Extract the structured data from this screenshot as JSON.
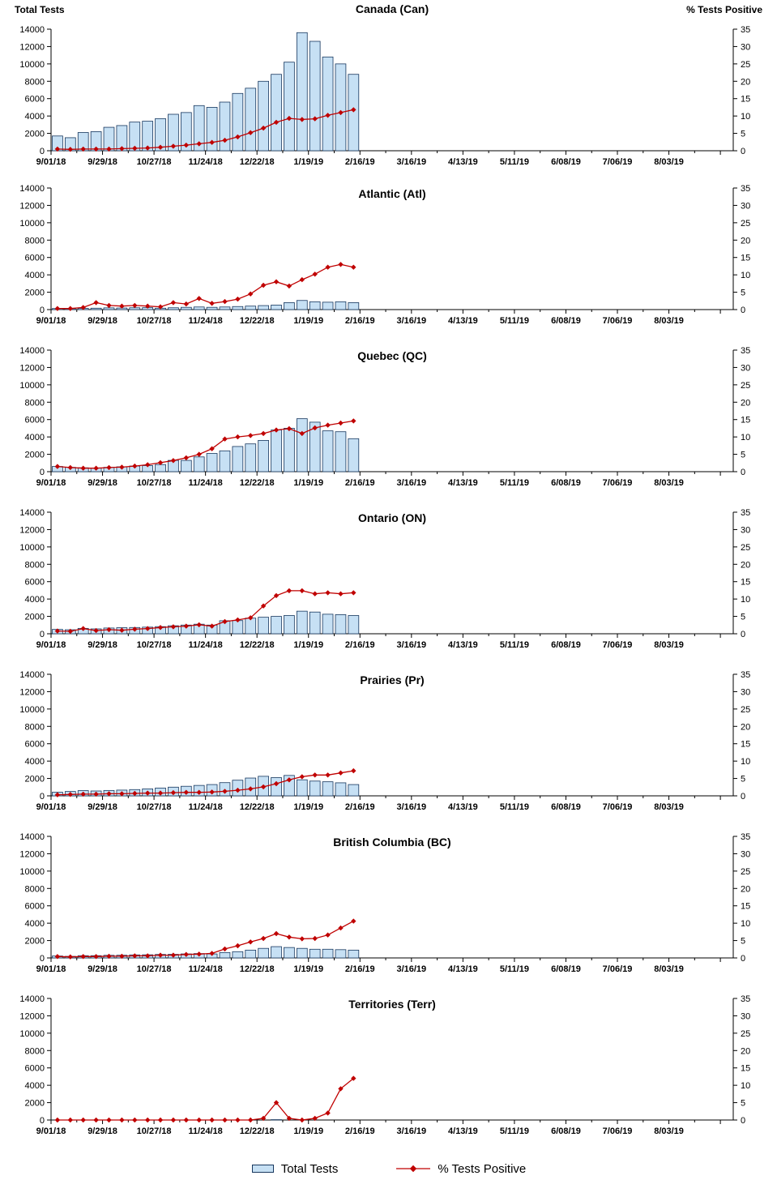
{
  "chart_data": {
    "type": "bar+line small-multiples",
    "x_tick_labels": [
      "9/01/18",
      "9/29/18",
      "10/27/18",
      "11/24/18",
      "12/22/18",
      "1/19/19",
      "2/16/19",
      "3/16/19",
      "4/13/19",
      "5/11/19",
      "6/08/19",
      "7/06/19",
      "8/03/19"
    ],
    "weeks": [
      "9/01/18",
      "9/08/18",
      "9/15/18",
      "9/22/18",
      "9/29/18",
      "10/06/18",
      "10/13/18",
      "10/20/18",
      "10/27/18",
      "11/03/18",
      "11/10/18",
      "11/17/18",
      "11/24/18",
      "12/01/18",
      "12/08/18",
      "12/15/18",
      "12/22/18",
      "12/29/18",
      "1/05/19",
      "1/12/19",
      "1/19/19",
      "1/26/19",
      "2/02/19",
      "2/09/19"
    ],
    "total_weeks_axis": 53,
    "left_axis": {
      "title": "Total Tests",
      "range": [
        0,
        14000
      ],
      "ticks": [
        0,
        2000,
        4000,
        6000,
        8000,
        10000,
        12000,
        14000
      ]
    },
    "right_axis": {
      "title": "% Tests  Positive",
      "range": [
        0,
        35
      ],
      "ticks": [
        0,
        5,
        10,
        15,
        20,
        25,
        30,
        35
      ]
    },
    "colors": {
      "bar_fill": "#C6E0F4",
      "bar_border": "#17375E",
      "line": "#C00000",
      "axis": "#000000"
    },
    "legend": [
      {
        "label": "Total Tests",
        "type": "bar"
      },
      {
        "label": "% Tests Positive",
        "type": "line"
      }
    ],
    "panels": [
      {
        "title": "Canada (Can)",
        "total_tests": [
          1700,
          1500,
          2100,
          2200,
          2700,
          2900,
          3300,
          3400,
          3700,
          4200,
          4400,
          5200,
          5000,
          5600,
          6600,
          7200,
          8000,
          8800,
          10200,
          13600,
          12600,
          10800,
          10000,
          8800
        ],
        "pct_positive": [
          0.5,
          0.4,
          0.5,
          0.5,
          0.5,
          0.6,
          0.7,
          0.8,
          1.0,
          1.3,
          1.6,
          2.0,
          2.4,
          3.0,
          4.0,
          5.2,
          6.5,
          8.2,
          9.3,
          9.0,
          9.2,
          10.2,
          11.0,
          11.8
        ]
      },
      {
        "title": "Atlantic (Atl)",
        "total_tests": [
          120,
          100,
          140,
          160,
          200,
          180,
          210,
          220,
          160,
          210,
          260,
          300,
          260,
          300,
          350,
          400,
          460,
          520,
          800,
          1050,
          900,
          850,
          900,
          800
        ],
        "pct_positive": [
          0.3,
          0.3,
          0.6,
          2.0,
          1.2,
          1.0,
          1.2,
          1.0,
          0.8,
          2.0,
          1.6,
          3.2,
          1.8,
          2.3,
          3.0,
          4.5,
          7.0,
          8.0,
          6.8,
          8.6,
          10.2,
          12.2,
          13.0,
          12.2
        ]
      },
      {
        "title": "Quebec (QC)",
        "total_tests": [
          600,
          500,
          450,
          420,
          500,
          560,
          650,
          700,
          820,
          1300,
          1300,
          1700,
          2100,
          2400,
          2900,
          3200,
          3600,
          4800,
          5000,
          6100,
          5700,
          4700,
          4600,
          3800
        ],
        "pct_positive": [
          1.5,
          1.2,
          1.0,
          1.0,
          1.2,
          1.3,
          1.6,
          2.0,
          2.6,
          3.2,
          4.0,
          5.0,
          6.6,
          9.4,
          10.0,
          10.4,
          11.0,
          12.0,
          12.4,
          11.0,
          12.6,
          13.4,
          14.0,
          14.6
        ]
      },
      {
        "title": "Ontario (ON)",
        "total_tests": [
          500,
          460,
          620,
          560,
          660,
          700,
          720,
          760,
          820,
          920,
          1000,
          1100,
          1000,
          1500,
          1520,
          1800,
          1900,
          2000,
          2100,
          2600,
          2500,
          2250,
          2200,
          2100
        ],
        "pct_positive": [
          0.8,
          0.7,
          1.5,
          0.9,
          1.2,
          1.0,
          1.3,
          1.5,
          1.8,
          2.0,
          2.2,
          2.6,
          2.2,
          3.5,
          4.0,
          4.6,
          8.0,
          11.0,
          12.4,
          12.4,
          11.5,
          11.8,
          11.5,
          11.8
        ]
      },
      {
        "title": "Prairies (Pr)",
        "total_tests": [
          420,
          500,
          600,
          560,
          620,
          660,
          720,
          800,
          900,
          1000,
          1100,
          1200,
          1300,
          1520,
          1800,
          2050,
          2250,
          2100,
          2350,
          1850,
          1700,
          1620,
          1500,
          1300
        ],
        "pct_positive": [
          0.3,
          0.4,
          0.5,
          0.5,
          0.6,
          0.6,
          0.7,
          0.8,
          0.8,
          0.9,
          1.0,
          1.0,
          1.1,
          1.3,
          1.6,
          2.0,
          2.6,
          3.5,
          4.6,
          5.5,
          6.0,
          6.0,
          6.6,
          7.2
        ]
      },
      {
        "title": "British Columbia (BC)",
        "total_tests": [
          220,
          180,
          260,
          260,
          300,
          310,
          350,
          360,
          400,
          410,
          460,
          500,
          460,
          620,
          720,
          900,
          1100,
          1300,
          1200,
          1100,
          1000,
          1000,
          950,
          900
        ],
        "pct_positive": [
          0.4,
          0.3,
          0.4,
          0.4,
          0.5,
          0.5,
          0.6,
          0.6,
          0.8,
          0.8,
          1.0,
          1.1,
          1.3,
          2.6,
          3.5,
          4.6,
          5.6,
          7.0,
          6.0,
          5.5,
          5.6,
          6.6,
          8.6,
          10.6
        ]
      },
      {
        "title": "Territories (Terr)",
        "total_tests": [
          8,
          5,
          10,
          6,
          8,
          5,
          12,
          10,
          6,
          12,
          15,
          12,
          10,
          18,
          22,
          28,
          32,
          40,
          30,
          22,
          26,
          32,
          36,
          30
        ],
        "pct_positive": [
          0,
          0,
          0,
          0,
          0,
          0,
          0,
          0,
          0,
          0,
          0,
          0,
          0,
          0,
          0,
          0,
          0.5,
          5.0,
          0.5,
          0,
          0.5,
          2.0,
          9.0,
          12.0
        ]
      }
    ]
  }
}
